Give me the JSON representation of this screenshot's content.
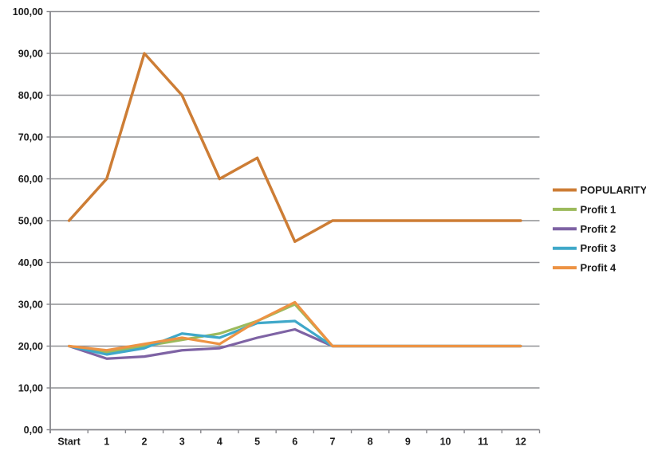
{
  "chart_data": {
    "type": "line",
    "title": "",
    "xlabel": "",
    "ylabel": "",
    "categories": [
      "Start",
      "1",
      "2",
      "3",
      "4",
      "5",
      "6",
      "7",
      "8",
      "9",
      "10",
      "11",
      "12"
    ],
    "series": [
      {
        "name": "POPULARITY",
        "color": "#cd7d35",
        "values": [
          50,
          60,
          90,
          80,
          60,
          65,
          45,
          50,
          50,
          50,
          50,
          50,
          50
        ]
      },
      {
        "name": "Profit 1",
        "color": "#9cba5c",
        "values": [
          20,
          18.5,
          20,
          21.5,
          23,
          26,
          30,
          20,
          20,
          20,
          20,
          20,
          20
        ]
      },
      {
        "name": "Profit 2",
        "color": "#7e63a4",
        "values": [
          20,
          17,
          17.5,
          19,
          19.5,
          22,
          24,
          20,
          20,
          20,
          20,
          20,
          20
        ]
      },
      {
        "name": "Profit 3",
        "color": "#3fa8c9",
        "values": [
          20,
          18,
          19.5,
          23,
          22,
          25.5,
          26,
          20,
          20,
          20,
          20,
          20,
          20
        ]
      },
      {
        "name": "Profit 4",
        "color": "#ed9344",
        "values": [
          20,
          19,
          20.5,
          22,
          20.5,
          26,
          30.5,
          20,
          20,
          20,
          20,
          20,
          20
        ]
      }
    ],
    "ylim": [
      0,
      100
    ],
    "ytick_step": 10,
    "ytick_labels": [
      "0,00",
      "10,00",
      "20,00",
      "30,00",
      "40,00",
      "50,00",
      "60,00",
      "70,00",
      "80,00",
      "90,00",
      "100,00"
    ],
    "grid": true,
    "legend_position": "right"
  },
  "colors": {
    "gridline": "#8f9094",
    "axis": "#87878c",
    "text": "#1b1b1b",
    "background": "#ffffff"
  }
}
